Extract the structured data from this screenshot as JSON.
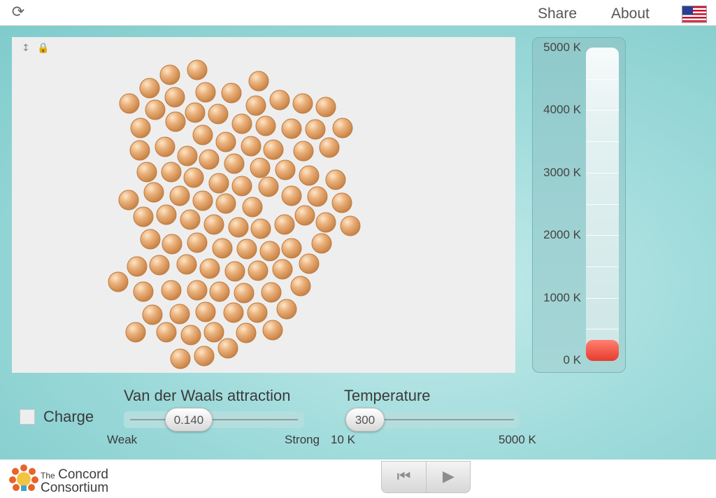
{
  "header": {
    "reload_icon": "reload-icon",
    "share_label": "Share",
    "about_label": "About",
    "flag_icon": "us-flag-icon"
  },
  "simulation": {
    "icons": [
      "thermometer-icon",
      "lock-icon"
    ],
    "atom_color": "#e0a46e",
    "atom_count": 109
  },
  "thermometer": {
    "labels": [
      "5000 K",
      "4000 K",
      "3000 K",
      "2000 K",
      "1000 K",
      "0 K"
    ],
    "value_K": 300,
    "max_K": 5000,
    "fill_color": "#e63b2e"
  },
  "controls": {
    "charge": {
      "label": "Charge",
      "checked": false
    },
    "vdw": {
      "title": "Van der Waals attraction",
      "value": "0.140",
      "min_label": "Weak",
      "max_label": "Strong"
    },
    "temperature": {
      "title": "Temperature",
      "value": "300",
      "min_label": "10 K",
      "max_label": "5000 K"
    }
  },
  "footer": {
    "logo_small": "The",
    "logo_line1": "Concord",
    "logo_line2": "Consortium",
    "playback": {
      "reset_icon": "skip-back-icon",
      "play_icon": "play-icon"
    }
  }
}
